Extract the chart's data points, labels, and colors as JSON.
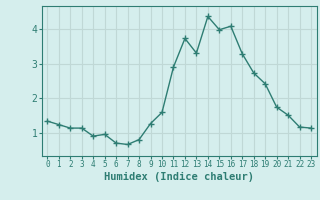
{
  "x": [
    0,
    1,
    2,
    3,
    4,
    5,
    6,
    7,
    8,
    9,
    10,
    11,
    12,
    13,
    14,
    15,
    16,
    17,
    18,
    19,
    20,
    21,
    22,
    23
  ],
  "y": [
    1.35,
    1.25,
    1.15,
    1.15,
    0.92,
    0.97,
    0.72,
    0.68,
    0.82,
    1.28,
    1.6,
    2.9,
    3.72,
    3.3,
    4.35,
    3.97,
    4.07,
    3.28,
    2.73,
    2.42,
    1.75,
    1.52,
    1.18,
    1.15
  ],
  "line_color": "#2e7d73",
  "marker": "+",
  "marker_size": 4.0,
  "linewidth": 1.0,
  "xlabel": "Humidex (Indice chaleur)",
  "xlabel_fontsize": 7.5,
  "yticks": [
    1,
    2,
    3,
    4
  ],
  "xticks": [
    0,
    1,
    2,
    3,
    4,
    5,
    6,
    7,
    8,
    9,
    10,
    11,
    12,
    13,
    14,
    15,
    16,
    17,
    18,
    19,
    20,
    21,
    22,
    23
  ],
  "xlim": [
    -0.5,
    23.5
  ],
  "ylim": [
    0.35,
    4.65
  ],
  "bg_color": "#d5eeed",
  "grid_color": "#c0d8d6",
  "tick_color": "#2e7d73",
  "spine_color": "#2e7d73",
  "xtick_fontsize": 5.5,
  "ytick_fontsize": 7.0
}
